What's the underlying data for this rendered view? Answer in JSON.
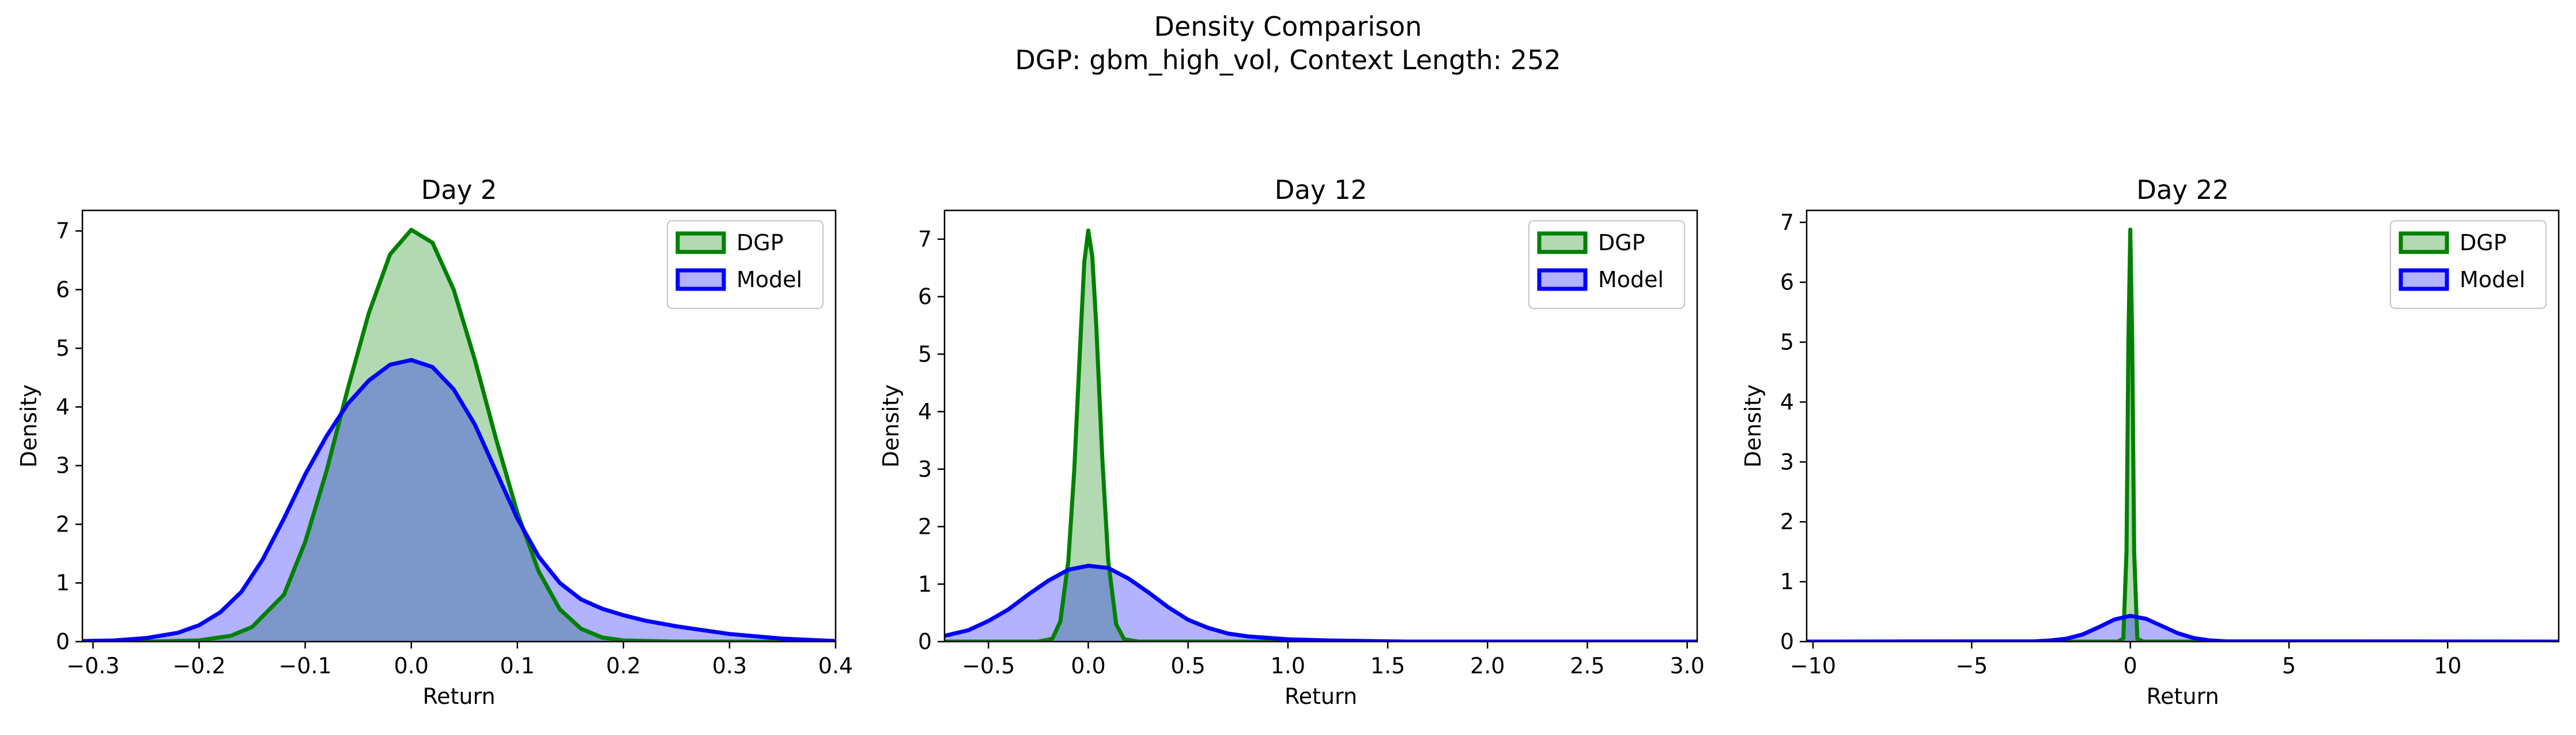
{
  "figure": {
    "title_line1": "Density Comparison",
    "title_line2": "DGP: gbm_high_vol, Context Length: 252"
  },
  "colors": {
    "dgp_line": "#008000",
    "dgp_fill": "#008000",
    "model_line": "#0000ff",
    "model_fill": "#0000ff",
    "axes": "#000000"
  },
  "chart_data": [
    {
      "type": "area",
      "title": "Day 2",
      "xlabel": "Return",
      "ylabel": "Density",
      "xlim": [
        -0.31,
        0.4
      ],
      "ylim": [
        0,
        7.35
      ],
      "xticks": [
        -0.3,
        -0.2,
        -0.1,
        0.0,
        0.1,
        0.2,
        0.3,
        0.4
      ],
      "xtick_labels": [
        "−0.3",
        "−0.2",
        "−0.1",
        "0.0",
        "0.1",
        "0.2",
        "0.3",
        "0.4"
      ],
      "yticks": [
        0,
        1,
        2,
        3,
        4,
        5,
        6,
        7
      ],
      "ytick_labels": [
        "0",
        "1",
        "2",
        "3",
        "4",
        "5",
        "6",
        "7"
      ],
      "legend": {
        "position": "top-right",
        "entries": [
          "DGP",
          "Model"
        ]
      },
      "series": [
        {
          "name": "DGP",
          "x": [
            -0.31,
            -0.25,
            -0.2,
            -0.17,
            -0.15,
            -0.12,
            -0.1,
            -0.08,
            -0.06,
            -0.04,
            -0.02,
            0.0,
            0.02,
            0.04,
            0.06,
            0.08,
            0.1,
            0.12,
            0.14,
            0.16,
            0.18,
            0.2,
            0.25,
            0.4
          ],
          "y": [
            0.0,
            0.0,
            0.02,
            0.1,
            0.25,
            0.8,
            1.7,
            2.9,
            4.3,
            5.6,
            6.6,
            7.02,
            6.8,
            6.0,
            4.8,
            3.45,
            2.2,
            1.2,
            0.55,
            0.22,
            0.07,
            0.02,
            0.0,
            0.0
          ]
        },
        {
          "name": "Model",
          "x": [
            -0.31,
            -0.28,
            -0.25,
            -0.22,
            -0.2,
            -0.18,
            -0.16,
            -0.14,
            -0.12,
            -0.1,
            -0.08,
            -0.06,
            -0.04,
            -0.02,
            0.0,
            0.02,
            0.04,
            0.06,
            0.08,
            0.1,
            0.12,
            0.14,
            0.16,
            0.18,
            0.2,
            0.22,
            0.25,
            0.3,
            0.35,
            0.4
          ],
          "y": [
            0.01,
            0.02,
            0.06,
            0.15,
            0.28,
            0.5,
            0.85,
            1.4,
            2.1,
            2.85,
            3.5,
            4.05,
            4.45,
            4.72,
            4.8,
            4.68,
            4.3,
            3.7,
            2.9,
            2.1,
            1.45,
            1.0,
            0.72,
            0.56,
            0.45,
            0.36,
            0.26,
            0.13,
            0.05,
            0.01
          ]
        }
      ]
    },
    {
      "type": "area",
      "title": "Day 12",
      "xlabel": "Return",
      "ylabel": "Density",
      "xlim": [
        -0.72,
        3.05
      ],
      "ylim": [
        0,
        7.5
      ],
      "xticks": [
        -0.5,
        0.0,
        0.5,
        1.0,
        1.5,
        2.0,
        2.5,
        3.0
      ],
      "xtick_labels": [
        "−0.5",
        "0.0",
        "0.5",
        "1.0",
        "1.5",
        "2.0",
        "2.5",
        "3.0"
      ],
      "yticks": [
        0,
        1,
        2,
        3,
        4,
        5,
        6,
        7
      ],
      "ytick_labels": [
        "0",
        "1",
        "2",
        "3",
        "4",
        "5",
        "6",
        "7"
      ],
      "legend": {
        "position": "top-right",
        "entries": [
          "DGP",
          "Model"
        ]
      },
      "series": [
        {
          "name": "DGP",
          "x": [
            -0.72,
            -0.25,
            -0.18,
            -0.14,
            -0.1,
            -0.07,
            -0.04,
            -0.02,
            0.0,
            0.02,
            0.04,
            0.07,
            0.1,
            0.14,
            0.18,
            0.25,
            3.05
          ],
          "y": [
            0.0,
            0.0,
            0.05,
            0.35,
            1.4,
            3.0,
            5.2,
            6.6,
            7.15,
            6.7,
            5.5,
            3.2,
            1.4,
            0.3,
            0.04,
            0.0,
            0.0
          ]
        },
        {
          "name": "Model",
          "x": [
            -0.72,
            -0.6,
            -0.5,
            -0.4,
            -0.3,
            -0.2,
            -0.1,
            0.0,
            0.1,
            0.2,
            0.3,
            0.4,
            0.5,
            0.6,
            0.7,
            0.8,
            1.0,
            1.2,
            1.4,
            1.6,
            2.0,
            3.05
          ],
          "y": [
            0.1,
            0.2,
            0.36,
            0.56,
            0.82,
            1.06,
            1.25,
            1.32,
            1.28,
            1.1,
            0.86,
            0.6,
            0.38,
            0.24,
            0.14,
            0.09,
            0.04,
            0.02,
            0.01,
            0.0,
            0.0,
            0.0
          ]
        }
      ]
    },
    {
      "type": "area",
      "title": "Day 22",
      "xlabel": "Return",
      "ylabel": "Density",
      "xlim": [
        -10.2,
        13.5
      ],
      "ylim": [
        0,
        7.2
      ],
      "xticks": [
        -10,
        -5,
        0,
        5,
        10
      ],
      "xtick_labels": [
        "−10",
        "−5",
        "0",
        "5",
        "10"
      ],
      "yticks": [
        0,
        1,
        2,
        3,
        4,
        5,
        6,
        7
      ],
      "ytick_labels": [
        "0",
        "1",
        "2",
        "3",
        "4",
        "5",
        "6",
        "7"
      ],
      "legend": {
        "position": "top-right",
        "entries": [
          "DGP",
          "Model"
        ]
      },
      "series": [
        {
          "name": "DGP",
          "x": [
            -10.2,
            -0.4,
            -0.22,
            -0.12,
            -0.06,
            0.0,
            0.06,
            0.12,
            0.22,
            0.4,
            13.5
          ],
          "y": [
            0.0,
            0.0,
            0.05,
            1.5,
            5.0,
            6.88,
            5.0,
            1.5,
            0.05,
            0.0,
            0.0
          ],
          "y_scale_note": ""
        },
        {
          "name": "Model",
          "x": [
            -10.2,
            -3.0,
            -2.5,
            -2.0,
            -1.5,
            -1.0,
            -0.5,
            0.0,
            0.5,
            1.0,
            1.5,
            2.0,
            2.5,
            3.0,
            13.5
          ],
          "y": [
            0.0,
            0.005,
            0.02,
            0.05,
            0.12,
            0.24,
            0.37,
            0.43,
            0.38,
            0.26,
            0.14,
            0.06,
            0.02,
            0.005,
            0.0
          ]
        }
      ]
    }
  ]
}
